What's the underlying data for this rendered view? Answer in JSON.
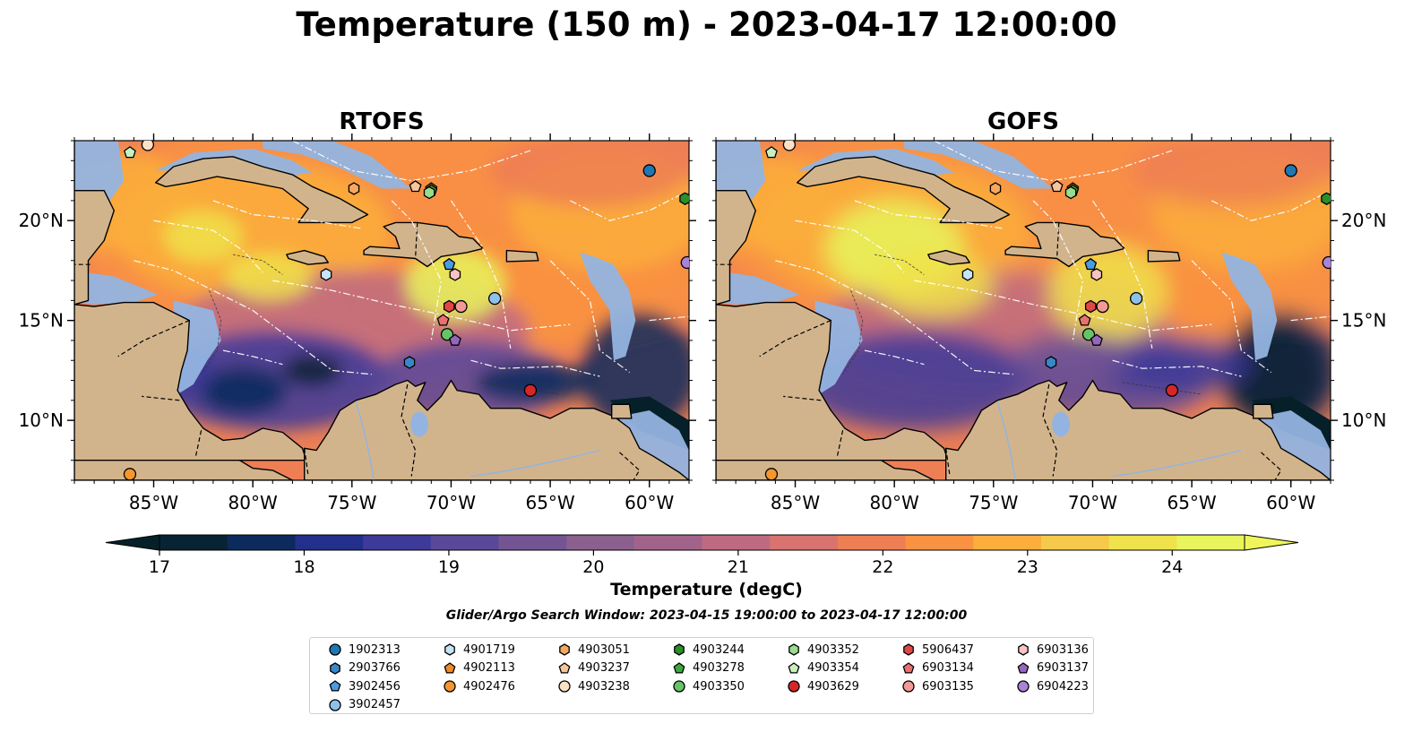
{
  "figure": {
    "title": "Temperature (150 m) - 2023-04-17 12:00:00",
    "colorbar_label": "Temperature (degC)",
    "search_window": "Glider/Argo Search Window: 2023-04-15 19:00:00 to 2023-04-17 12:00:00"
  },
  "chart_data": {
    "type": "heatmap",
    "title": "Temperature (150 m) - 2023-04-17 12:00:00",
    "panels": [
      {
        "name": "RTOFS"
      },
      {
        "name": "GOFS"
      }
    ],
    "x_ticks": [
      "85°W",
      "80°W",
      "75°W",
      "70°W",
      "65°W",
      "60°W"
    ],
    "x_tick_values": [
      -85,
      -80,
      -75,
      -70,
      -65,
      -60
    ],
    "y_ticks": [
      "10°N",
      "15°N",
      "20°N"
    ],
    "y_tick_values": [
      10,
      15,
      20
    ],
    "xlim": [
      -89,
      -58
    ],
    "ylim": [
      7,
      24
    ],
    "colorbar": {
      "label": "Temperature (degC)",
      "range": [
        17,
        24.5
      ],
      "step": 0.5,
      "extend": "both",
      "ticks": [
        17,
        18,
        19,
        20,
        21,
        22,
        23,
        24
      ],
      "colors": [
        "#082333",
        "#0c2a5c",
        "#232f8a",
        "#3d3a99",
        "#5a4899",
        "#735593",
        "#8b5f8e",
        "#a2638a",
        "#be6b82",
        "#d8736f",
        "#ee7f55",
        "#f99242",
        "#fbae3c",
        "#f5c94a",
        "#f0e24a",
        "#e8f55c"
      ],
      "under_color": "#06202a",
      "over_color": "#f0f55a"
    },
    "floats": [
      {
        "id": "1902313",
        "color": "#1f77b4",
        "marker": "circle",
        "lon": -60.0,
        "lat": 22.5
      },
      {
        "id": "2903766",
        "color": "#3a87c8",
        "marker": "hexagon",
        "lon": -72.1,
        "lat": 12.9
      },
      {
        "id": "3902456",
        "color": "#4b9be0",
        "marker": "pentagon",
        "lon": -70.1,
        "lat": 17.8
      },
      {
        "id": "3902457",
        "color": "#8ec1ea",
        "marker": "circle",
        "lon": -67.8,
        "lat": 16.1
      },
      {
        "id": "4901719",
        "color": "#c6e3f7",
        "marker": "hexagon",
        "lon": -76.3,
        "lat": 17.3
      },
      {
        "id": "4902113",
        "color": "#f08a28",
        "marker": "pentagon",
        "lon": -71.0,
        "lat": 21.6
      },
      {
        "id": "4902476",
        "color": "#f5962e",
        "marker": "circle",
        "lon": -86.2,
        "lat": 7.3
      },
      {
        "id": "4903051",
        "color": "#f6a760",
        "marker": "hexagon",
        "lon": -74.9,
        "lat": 21.6
      },
      {
        "id": "4903237",
        "color": "#f8c59a",
        "marker": "pentagon",
        "lon": -71.8,
        "lat": 21.7
      },
      {
        "id": "4903238",
        "color": "#fde0c6",
        "marker": "circle",
        "lon": -85.3,
        "lat": 23.8
      },
      {
        "id": "4903244",
        "color": "#2a8f2a",
        "marker": "hexagon",
        "lon": -58.2,
        "lat": 21.1
      },
      {
        "id": "4903278",
        "color": "#3ea83e",
        "marker": "pentagon",
        "lon": -71.0,
        "lat": 21.5
      },
      {
        "id": "4903350",
        "color": "#66c466",
        "marker": "circle",
        "lon": -70.2,
        "lat": 14.3
      },
      {
        "id": "4903352",
        "color": "#98dc8c",
        "marker": "hexagon",
        "lon": -71.1,
        "lat": 21.4
      },
      {
        "id": "4903354",
        "color": "#c8efbe",
        "marker": "pentagon",
        "lon": -86.2,
        "lat": 23.4
      },
      {
        "id": "4903629",
        "color": "#d62728",
        "marker": "circle",
        "lon": -66.0,
        "lat": 11.5
      },
      {
        "id": "5906437",
        "color": "#e04848",
        "marker": "hexagon",
        "lon": -70.1,
        "lat": 15.7
      },
      {
        "id": "6903134",
        "color": "#ea7070",
        "marker": "pentagon",
        "lon": -70.4,
        "lat": 15.0
      },
      {
        "id": "6903135",
        "color": "#f29a96",
        "marker": "circle",
        "lon": -69.5,
        "lat": 15.7
      },
      {
        "id": "6903136",
        "color": "#f7c3c3",
        "marker": "hexagon",
        "lon": -69.8,
        "lat": 17.3
      },
      {
        "id": "6903137",
        "color": "#9467bd",
        "marker": "pentagon",
        "lon": -69.8,
        "lat": 14.0
      },
      {
        "id": "6904223",
        "color": "#a984d6",
        "marker": "circle",
        "lon": -58.1,
        "lat": 17.9
      }
    ]
  }
}
